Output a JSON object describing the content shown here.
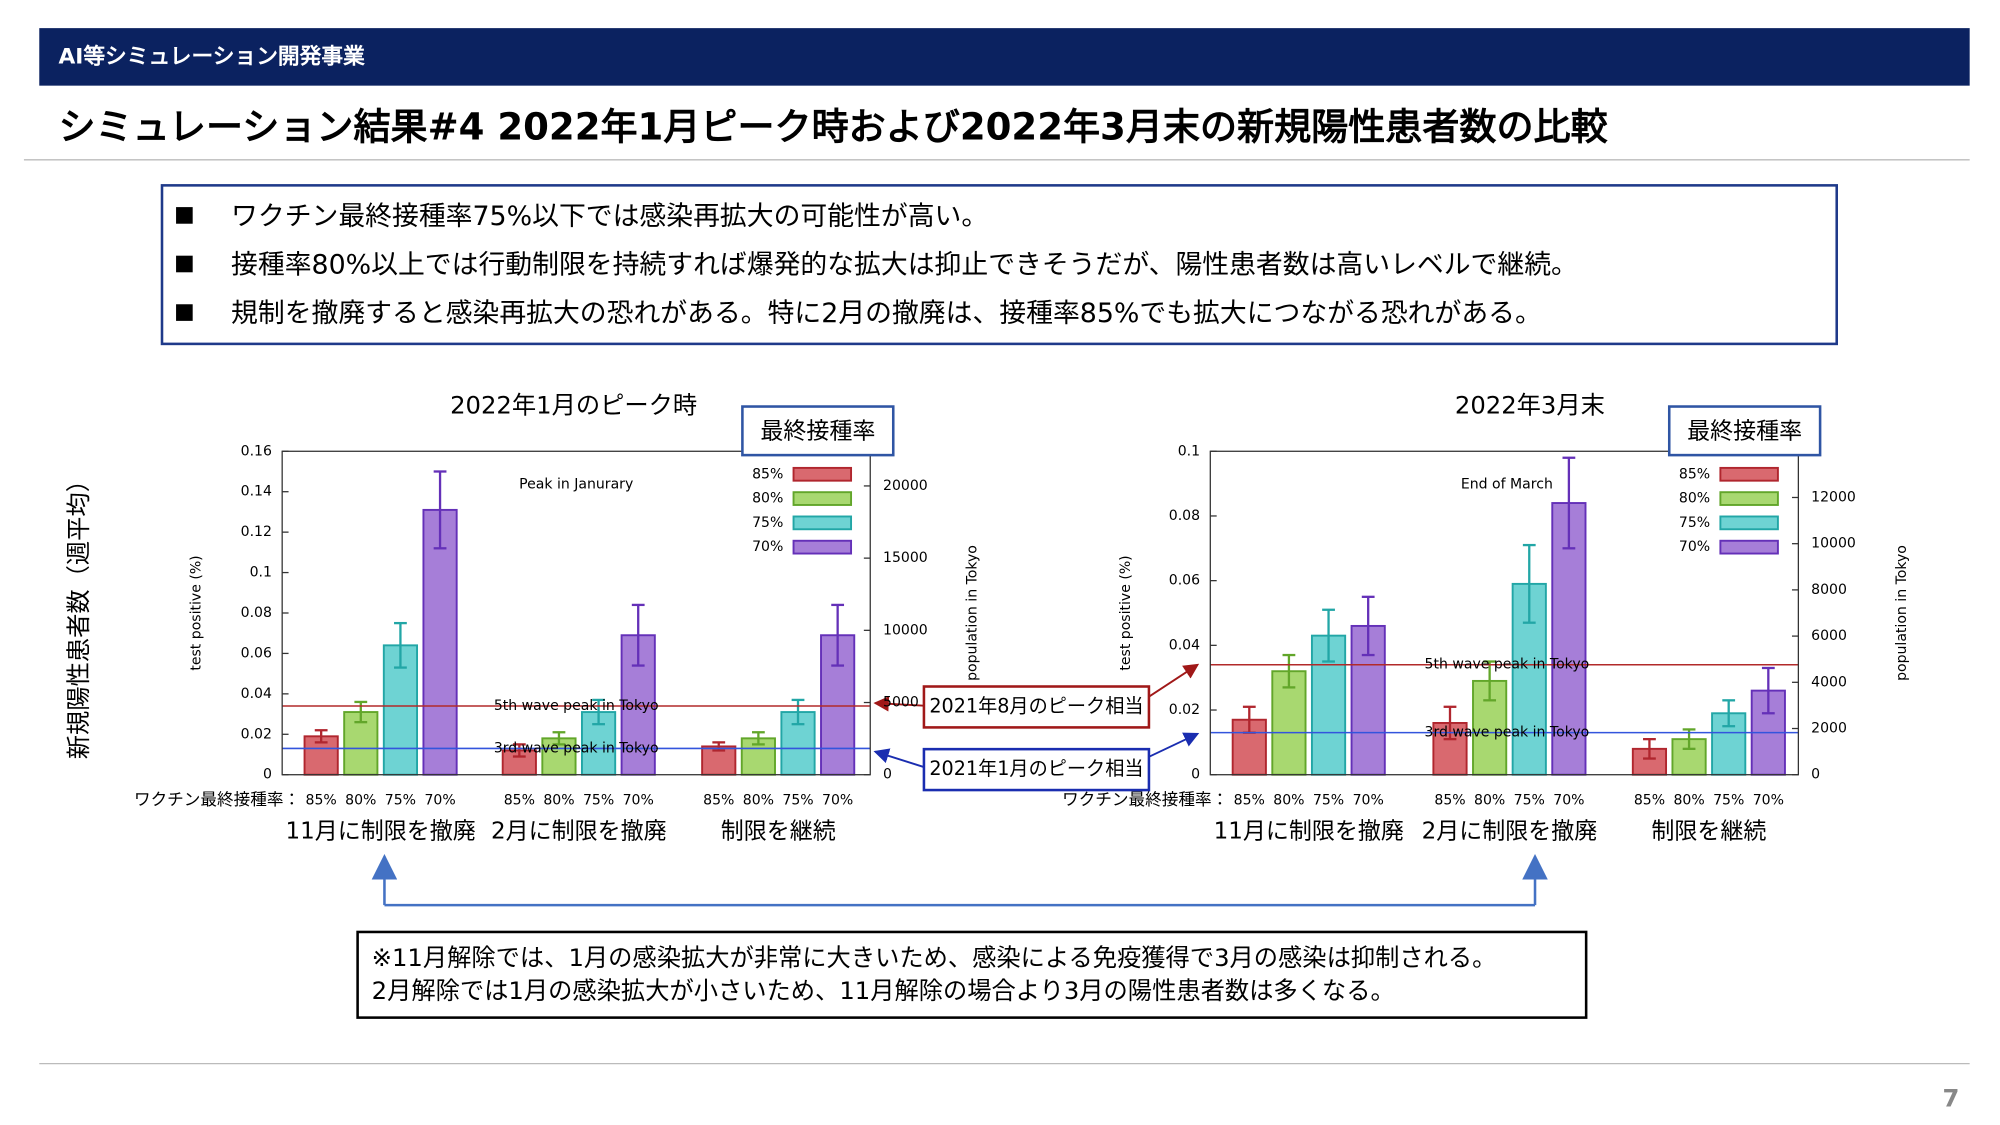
{
  "header": "AI等シミュレーション開発事業",
  "title": "シミュレーション結果#4 2022年1月ピーク時および2022年3月末の新規陽性患者数の比較",
  "bullets": [
    "ワクチン最終接種率75%以下では感染再拡大の可能性が高い。",
    "接種率80%以上では行動制限を持続すれば爆発的な拡大は抑止できそうだが、陽性患者数は高いレベルで継続。",
    "規制を撤廃すると感染再拡大の恐れがある。特に2月の撤廃は、接種率85%でも拡大につながる恐れがある。"
  ],
  "y_axis_label": "新規陽性患者数（週平均）",
  "callouts": [
    "2021年8月のピーク相当",
    "2021年1月のピーク相当"
  ],
  "note": [
    "※11月解除では、1月の感染拡大が非常に大きいため、感染による免疫獲得で3月の感染は抑制される。",
    "2月解除では1月の感染拡大が小さいため、11月解除の場合より3月の陽性患者数は多くなる。"
  ],
  "page_number": "7",
  "chart_data": [
    {
      "type": "bar",
      "title": "2022年1月のピーク時",
      "annotation": "Peak in Janurary",
      "legend_title": "最終接種率",
      "x_label": "ワクチン最終接種率：",
      "y_label": "test positive (%)",
      "y2_label": "population in Tokyo",
      "categories": [
        "11月に制限を撤廃",
        "2月に制限を撤廃",
        "制限を継続"
      ],
      "series": [
        {
          "name": "85%",
          "color": "#d9696f",
          "edge_color": "#b0262e",
          "values": [
            0.019,
            0.012,
            0.014
          ],
          "errors": [
            0.003,
            0.003,
            0.002
          ]
        },
        {
          "name": "80%",
          "color": "#a8d870",
          "edge_color": "#62a62a",
          "values": [
            0.031,
            0.018,
            0.018
          ],
          "errors": [
            0.005,
            0.003,
            0.003
          ]
        },
        {
          "name": "75%",
          "color": "#6ed3d3",
          "edge_color": "#22a6a6",
          "values": [
            0.064,
            0.031,
            0.031
          ],
          "errors": [
            0.011,
            0.006,
            0.006
          ]
        },
        {
          "name": "70%",
          "color": "#a67ed8",
          "edge_color": "#6430b8",
          "values": [
            0.131,
            0.069,
            0.069
          ],
          "errors": [
            0.019,
            0.015,
            0.015
          ]
        }
      ],
      "ylim": [
        0,
        0.16
      ],
      "yticks": [
        0,
        0.02,
        0.04,
        0.06,
        0.08,
        0.1,
        0.12,
        0.14,
        0.16
      ],
      "y2lim": [
        0,
        22400
      ],
      "y2ticks": [
        0,
        5000,
        10000,
        15000,
        20000
      ],
      "reference_lines": [
        {
          "label": "5th wave peak in Tokyo",
          "value": 0.034,
          "color": "#b22a2a"
        },
        {
          "label": "3rd wave peak in Tokyo",
          "value": 0.013,
          "color": "#3355dd"
        }
      ]
    },
    {
      "type": "bar",
      "title": "2022年3月末",
      "annotation": "End of March",
      "legend_title": "最終接種率",
      "x_label": "ワクチン最終接種率：",
      "y_label": "test positive (%)",
      "y2_label": "population in Tokyo",
      "categories": [
        "11月に制限を撤廃",
        "2月に制限を撤廃",
        "制限を継続"
      ],
      "series": [
        {
          "name": "85%",
          "color": "#d9696f",
          "edge_color": "#b0262e",
          "values": [
            0.017,
            0.016,
            0.008
          ],
          "errors": [
            0.004,
            0.005,
            0.003
          ]
        },
        {
          "name": "80%",
          "color": "#a8d870",
          "edge_color": "#62a62a",
          "values": [
            0.032,
            0.029,
            0.011
          ],
          "errors": [
            0.005,
            0.006,
            0.003
          ]
        },
        {
          "name": "75%",
          "color": "#6ed3d3",
          "edge_color": "#22a6a6",
          "values": [
            0.043,
            0.059,
            0.019
          ],
          "errors": [
            0.008,
            0.012,
            0.004
          ]
        },
        {
          "name": "70%",
          "color": "#a67ed8",
          "edge_color": "#6430b8",
          "values": [
            0.046,
            0.084,
            0.026
          ],
          "errors": [
            0.009,
            0.014,
            0.007
          ]
        }
      ],
      "ylim": [
        0,
        0.1
      ],
      "yticks": [
        0,
        0.02,
        0.04,
        0.06,
        0.08,
        0.1
      ],
      "y2lim": [
        0,
        14000
      ],
      "y2ticks": [
        0,
        2000,
        4000,
        6000,
        8000,
        10000,
        12000
      ],
      "reference_lines": [
        {
          "label": "5th wave peak in Tokyo",
          "value": 0.034,
          "color": "#b22a2a"
        },
        {
          "label": "3rd wave peak in Tokyo",
          "value": 0.013,
          "color": "#3355dd"
        }
      ]
    }
  ]
}
